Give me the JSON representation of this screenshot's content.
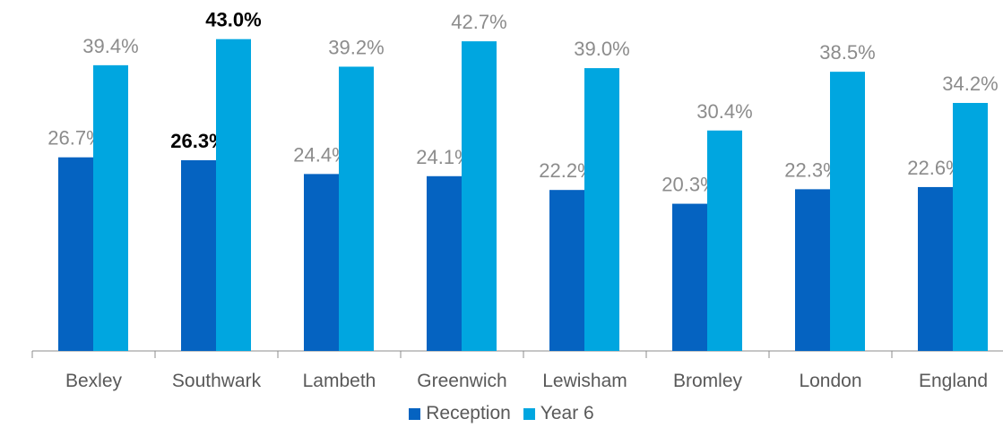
{
  "chart_data": {
    "type": "bar",
    "categories": [
      "Bexley",
      "Southwark",
      "Lambeth",
      "Greenwich",
      "Lewisham",
      "Bromley",
      "London",
      "England"
    ],
    "series": [
      {
        "name": "Reception",
        "values": [
          26.7,
          26.3,
          24.4,
          24.1,
          22.2,
          20.3,
          22.3,
          22.6
        ],
        "color": "#0563C1",
        "labels": [
          "26.7%",
          "26.3%",
          "24.4%",
          "24.1%",
          "22.2%",
          "20.3%",
          "22.3%",
          "22.6%"
        ]
      },
      {
        "name": "Year 6",
        "values": [
          39.4,
          43.0,
          39.2,
          42.7,
          39.0,
          30.4,
          38.5,
          34.2
        ],
        "color": "#00A6E0",
        "labels": [
          "39.4%",
          "43.0%",
          "39.2%",
          "42.7%",
          "39.0%",
          "30.4%",
          "38.5%",
          "34.2%"
        ]
      }
    ],
    "highlight_category": "Southwark",
    "title": "",
    "xlabel": "",
    "ylabel": "",
    "ylim": [
      0,
      50
    ],
    "grid": false,
    "legend_position": "bottom",
    "label_color": "#8C8C8C",
    "highlight_label_color": "#000000",
    "axis_color": "#8C8C8C",
    "tick_label_color": "#595959"
  }
}
